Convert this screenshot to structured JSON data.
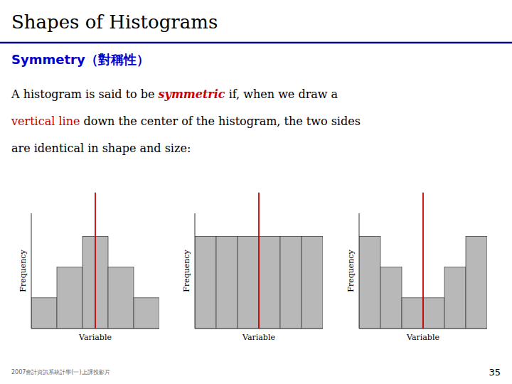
{
  "title": "Shapes of Histograms",
  "subtitle": "Symmetry（對稱性）",
  "subtitle_color": "#0000cc",
  "title_line_color": "#00008b",
  "highlight_color": "#cc0000",
  "text_lines": [
    [
      {
        "text": "A histogram is said to be "
      },
      {
        "text": "symmetric",
        "highlight": true,
        "italic": true
      },
      {
        "text": " if, when we draw a"
      }
    ],
    [
      {
        "text": "vertical line",
        "highlight": true
      },
      {
        "text": " down the center of the histogram, the two sides"
      }
    ],
    [
      {
        "text": "are identical in shape and size:"
      }
    ]
  ],
  "footer_text": "2007會計資訊系統計學(一)上課投影片",
  "page_number": "35",
  "chart_data": [
    {
      "type": "bar",
      "categories": [
        null,
        null,
        null,
        null,
        null
      ],
      "values": [
        1,
        2,
        3,
        2,
        1
      ],
      "x_label": "Variable",
      "y_label": "Frequency",
      "ylim": [
        0,
        3.75
      ],
      "yticks": [],
      "tick_labels": false,
      "color": "#b8b8b8"
    },
    {
      "type": "bar",
      "categories": [
        null,
        null,
        null,
        null,
        null,
        null
      ],
      "values": [
        3,
        3,
        3,
        3,
        3,
        3
      ],
      "x_label": "Variable",
      "y_label": "Frequency",
      "ylim": [
        0,
        3.75
      ],
      "yticks": [],
      "tick_labels": false,
      "color": "#b8b8b8"
    },
    {
      "type": "bar",
      "categories": [
        null,
        null,
        null,
        null,
        null,
        null
      ],
      "values": [
        3,
        2,
        1,
        1,
        2,
        3
      ],
      "x_label": "Variable",
      "y_label": "Frequency",
      "ylim": [
        0,
        3.75
      ],
      "yticks": [],
      "tick_labels": false,
      "color": "#b8b8b8"
    }
  ]
}
